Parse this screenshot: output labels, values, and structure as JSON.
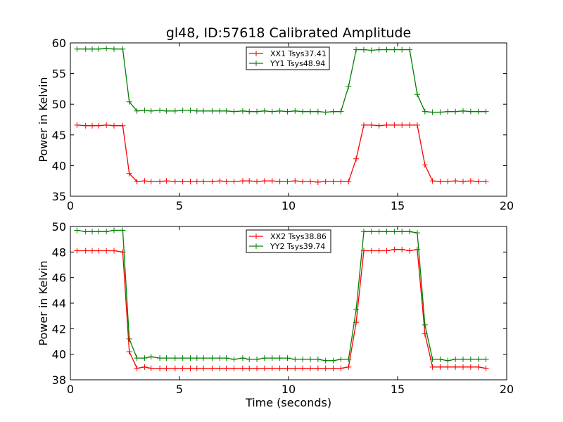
{
  "figure_title": "gl48, ID:57618 Calibrated Amplitude",
  "colors": {
    "XX": "#ff0000",
    "YY": "#008000",
    "axes": "#000000",
    "background": "#ffffff"
  },
  "chart_data": [
    {
      "type": "line",
      "title": "gl48, ID:57618 Calibrated Amplitude",
      "xlabel": "",
      "ylabel": "Power in Kelvin",
      "xlim": [
        0,
        20
      ],
      "ylim": [
        35,
        60
      ],
      "xticks": [
        0,
        5,
        10,
        15,
        20
      ],
      "yticks": [
        35,
        40,
        45,
        50,
        55,
        60
      ],
      "grid": false,
      "legend_position": "top-center",
      "x": [
        0.3,
        0.7,
        1.0,
        1.3,
        1.65,
        2.0,
        2.4,
        2.7,
        3.05,
        3.4,
        3.7,
        4.1,
        4.4,
        4.8,
        5.15,
        5.5,
        5.8,
        6.1,
        6.5,
        6.85,
        7.15,
        7.5,
        7.9,
        8.2,
        8.55,
        8.9,
        9.25,
        9.6,
        9.95,
        10.3,
        10.65,
        11.0,
        11.35,
        11.7,
        12.05,
        12.4,
        12.75,
        13.1,
        13.45,
        13.8,
        14.15,
        14.5,
        14.85,
        15.2,
        15.55,
        15.9,
        16.25,
        16.6,
        16.95,
        17.3,
        17.65,
        18.0,
        18.35,
        18.7,
        19.05
      ],
      "series": [
        {
          "name": "XX1 Tsys37.41",
          "color": "#ff0000",
          "values": [
            46.6,
            46.5,
            46.5,
            46.5,
            46.6,
            46.5,
            46.5,
            38.7,
            37.4,
            37.5,
            37.4,
            37.4,
            37.5,
            37.4,
            37.4,
            37.4,
            37.4,
            37.4,
            37.4,
            37.5,
            37.4,
            37.4,
            37.5,
            37.5,
            37.4,
            37.5,
            37.5,
            37.4,
            37.4,
            37.5,
            37.4,
            37.4,
            37.3,
            37.4,
            37.4,
            37.4,
            37.4,
            41.1,
            46.6,
            46.6,
            46.5,
            46.6,
            46.6,
            46.6,
            46.6,
            46.6,
            40.1,
            37.5,
            37.4,
            37.4,
            37.5,
            37.4,
            37.5,
            37.4,
            37.4
          ]
        },
        {
          "name": "YY1 Tsys48.94",
          "color": "#008000",
          "values": [
            59.0,
            59.0,
            59.0,
            59.0,
            59.1,
            59.0,
            59.0,
            50.4,
            48.9,
            49.0,
            48.9,
            49.0,
            48.9,
            48.9,
            49.0,
            49.0,
            48.9,
            48.9,
            48.9,
            48.9,
            48.9,
            48.8,
            48.9,
            48.8,
            48.8,
            48.9,
            48.8,
            48.9,
            48.8,
            48.9,
            48.8,
            48.8,
            48.8,
            48.7,
            48.8,
            48.8,
            52.9,
            58.9,
            58.9,
            58.8,
            58.9,
            58.9,
            58.9,
            58.9,
            58.9,
            51.6,
            48.8,
            48.7,
            48.7,
            48.8,
            48.8,
            48.9,
            48.8,
            48.8,
            48.8
          ]
        }
      ]
    },
    {
      "type": "line",
      "title": "",
      "xlabel": "Time (seconds)",
      "ylabel": "Power in Kelvin",
      "xlim": [
        0,
        20
      ],
      "ylim": [
        38,
        50
      ],
      "xticks": [
        0,
        5,
        10,
        15,
        20
      ],
      "yticks": [
        38,
        40,
        42,
        44,
        46,
        48,
        50
      ],
      "grid": false,
      "legend_position": "top-center",
      "x": [
        0.3,
        0.7,
        1.0,
        1.3,
        1.65,
        2.0,
        2.4,
        2.7,
        3.05,
        3.4,
        3.7,
        4.1,
        4.4,
        4.8,
        5.15,
        5.5,
        5.8,
        6.1,
        6.5,
        6.85,
        7.15,
        7.5,
        7.9,
        8.2,
        8.55,
        8.9,
        9.25,
        9.6,
        9.95,
        10.3,
        10.65,
        11.0,
        11.35,
        11.7,
        12.05,
        12.4,
        12.75,
        13.1,
        13.45,
        13.8,
        14.15,
        14.5,
        14.85,
        15.2,
        15.55,
        15.9,
        16.25,
        16.6,
        16.95,
        17.3,
        17.65,
        18.0,
        18.35,
        18.7,
        19.05
      ],
      "series": [
        {
          "name": "XX2 Tsys38.86",
          "color": "#ff0000",
          "values": [
            48.1,
            48.1,
            48.1,
            48.1,
            48.1,
            48.1,
            48.0,
            40.2,
            38.9,
            39.0,
            38.9,
            38.9,
            38.9,
            38.9,
            38.9,
            38.9,
            38.9,
            38.9,
            38.9,
            38.9,
            38.9,
            38.9,
            38.9,
            38.9,
            38.9,
            38.9,
            38.9,
            38.9,
            38.9,
            38.9,
            38.9,
            38.9,
            38.9,
            38.9,
            38.9,
            38.9,
            39.0,
            42.5,
            48.1,
            48.1,
            48.1,
            48.1,
            48.2,
            48.2,
            48.1,
            48.2,
            41.6,
            39.0,
            39.0,
            39.0,
            39.0,
            39.0,
            39.0,
            39.0,
            38.9
          ]
        },
        {
          "name": "YY2 Tsys39.74",
          "color": "#008000",
          "values": [
            49.7,
            49.6,
            49.6,
            49.6,
            49.6,
            49.7,
            49.7,
            41.2,
            39.7,
            39.7,
            39.8,
            39.7,
            39.7,
            39.7,
            39.7,
            39.7,
            39.7,
            39.7,
            39.7,
            39.7,
            39.7,
            39.6,
            39.7,
            39.6,
            39.6,
            39.7,
            39.7,
            39.7,
            39.7,
            39.6,
            39.6,
            39.6,
            39.6,
            39.5,
            39.5,
            39.6,
            39.6,
            43.5,
            49.6,
            49.6,
            49.6,
            49.6,
            49.6,
            49.6,
            49.6,
            49.5,
            42.3,
            39.6,
            39.6,
            39.5,
            39.6,
            39.6,
            39.6,
            39.6,
            39.6
          ]
        }
      ]
    }
  ]
}
